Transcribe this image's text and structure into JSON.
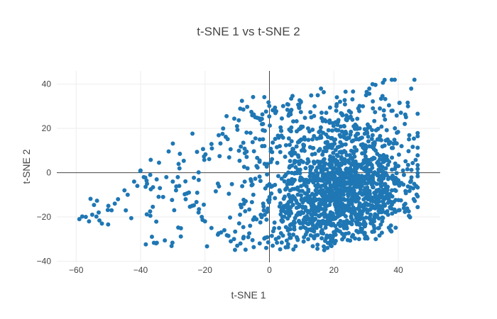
{
  "chart_data": {
    "type": "scatter",
    "title": "t-SNE 1 vs t-SNE 2",
    "xlabel": "t-SNE 1",
    "ylabel": "t-SNE 2",
    "xlim": [
      -66,
      53
    ],
    "ylim": [
      -40.5,
      46
    ],
    "xticks": [
      -60,
      -40,
      -20,
      0,
      20,
      40
    ],
    "yticks": [
      -40,
      -20,
      0,
      20,
      40
    ],
    "xtick_labels": [
      "−60",
      "−40",
      "−20",
      "0",
      "20",
      "40"
    ],
    "ytick_labels": [
      "−40",
      "−20",
      "0",
      "20",
      "40"
    ],
    "grid": true,
    "zero_lines": true,
    "legend": "none",
    "series": [
      {
        "color": "#1f77b4",
        "marker_size": 6,
        "point_count": 1800,
        "x": [
          -59,
          -57,
          -56,
          -55,
          -53,
          -52,
          -50,
          -49,
          -48,
          -47,
          -45,
          -44,
          -42,
          -41,
          -40,
          -39,
          -38,
          -37,
          -35,
          -34,
          -33,
          -32,
          -30,
          -29,
          -28,
          -26,
          -25,
          -24,
          -22,
          -21,
          -20,
          -18,
          -16,
          -15,
          -14,
          -12,
          -11,
          -10,
          -9,
          -8,
          -6,
          -5,
          -4,
          -3,
          -2,
          -1,
          1,
          2,
          3,
          4,
          5,
          6,
          7,
          8,
          9,
          10,
          11,
          12,
          13,
          14,
          15,
          16,
          17,
          18,
          19,
          20,
          21,
          22,
          23,
          24,
          25,
          26,
          27,
          28,
          29,
          30,
          31,
          32,
          33,
          34,
          35,
          36,
          37,
          38,
          39,
          40,
          41,
          42,
          43,
          44,
          45
        ],
        "y": [
          -21,
          -20,
          -22,
          -19,
          -18,
          -23,
          -15,
          -17,
          -14,
          -12,
          -8,
          -10,
          -4,
          -6,
          1,
          -2,
          -5,
          -1,
          -3,
          -7,
          -11,
          -2,
          -4,
          -8,
          -6,
          -12,
          -9,
          -15,
          -18,
          -20,
          -22,
          -25,
          -28,
          -27,
          -26,
          -31,
          -30,
          -33,
          -32,
          -29,
          -24,
          -10,
          3,
          15,
          22,
          -34,
          -33,
          -30,
          -25,
          -20,
          -15,
          -10,
          -5,
          0,
          5,
          10,
          15,
          20,
          25,
          30,
          35,
          38,
          -35,
          -34,
          -31,
          -28,
          -20,
          -15,
          -10,
          -5,
          0,
          5,
          10,
          20,
          30,
          35,
          38,
          40,
          -30,
          -25,
          -22,
          -18,
          -12,
          -8,
          -4,
          3,
          12,
          22,
          30,
          38,
          42
        ]
      }
    ]
  }
}
